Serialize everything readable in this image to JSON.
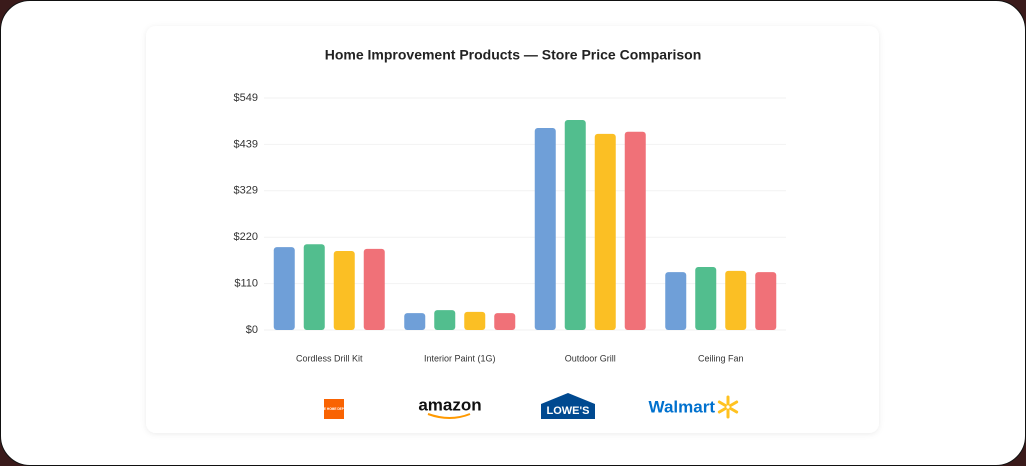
{
  "chart_data": {
    "type": "bar",
    "title": "Home Improvement Products — Store Price Comparison",
    "categories": [
      "Cordless Drill Kit",
      "Interior Paint (1G)",
      "Outdoor Grill",
      "Ceiling Fan"
    ],
    "series": [
      {
        "name": "THE HOME DEPOT",
        "color": "#6f9fd8",
        "values": [
          196,
          40,
          478,
          137
        ]
      },
      {
        "name": "amazon",
        "color": "#52be8e",
        "values": [
          203,
          47,
          497,
          149
        ]
      },
      {
        "name": "LOWE'S",
        "color": "#fbbf24",
        "values": [
          187,
          43,
          464,
          140
        ]
      },
      {
        "name": "Walmart",
        "color": "#f07178",
        "values": [
          192,
          40,
          469,
          137
        ]
      }
    ],
    "ylim": [
      0,
      549
    ],
    "yticks": [
      {
        "value": 0,
        "label": "$0"
      },
      {
        "value": 109.8,
        "label": "$110"
      },
      {
        "value": 219.6,
        "label": "$220"
      },
      {
        "value": 329.4,
        "label": "$329"
      },
      {
        "value": 439.2,
        "label": "$439"
      },
      {
        "value": 549,
        "label": "$549"
      }
    ],
    "grid": true
  }
}
